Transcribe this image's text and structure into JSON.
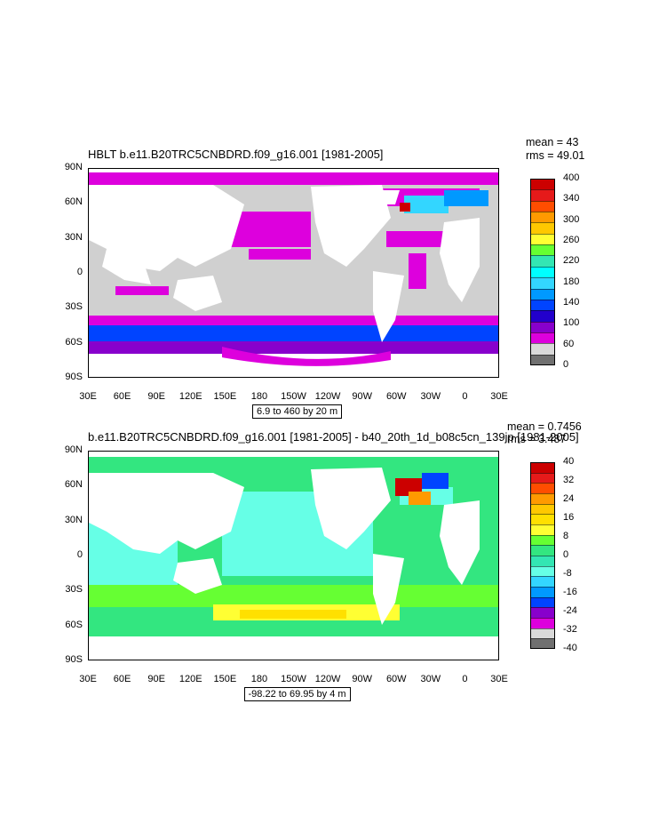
{
  "panels": [
    {
      "title": "HBLT b.e11.B20TRC5CNBDRD.f09_g16.001 [1981-2005]",
      "mean": "mean = 43",
      "rms": "rms = 49.01",
      "range_text": "6.9 to 460 by 20 m",
      "colorbar": {
        "labels": [
          "400",
          "340",
          "300",
          "260",
          "220",
          "180",
          "140",
          "100",
          "60",
          "0"
        ],
        "colors": [
          "#cc0000",
          "#e61a1a",
          "#ff4d00",
          "#ff9a00",
          "#ffc800",
          "#ffff33",
          "#66ff33",
          "#33e6b3",
          "#00ffff",
          "#33d6ff",
          "#0099ff",
          "#0044ff",
          "#2200cc",
          "#8800cc",
          "#dd00dd",
          "#d9d9d9",
          "#707070"
        ]
      },
      "chart_data": {
        "type": "heatmap",
        "title": "HBLT b.e11.B20TRC5CNBDRD.f09_g16.001 [1981-2005]",
        "units": "m",
        "range": [
          6.9,
          460
        ],
        "interval": 20,
        "mean": 43,
        "rms": 49.01
      }
    },
    {
      "title": "b.e11.B20TRC5CNBDRD.f09_g16.001 [1981-2005] - b40_20th_1d_b08c5cn_139jp [1981-2005]",
      "mean": "mean = 0.7456",
      "rms": "rms = 3.487",
      "range_text": "-98.22 to 69.95 by 4 m",
      "colorbar": {
        "labels": [
          "40",
          "32",
          "24",
          "16",
          "8",
          "0",
          "-8",
          "-16",
          "-24",
          "-32",
          "-40"
        ],
        "colors": [
          "#cc0000",
          "#e61a1a",
          "#ff4d00",
          "#ff9a00",
          "#ffc800",
          "#ffe000",
          "#ffff33",
          "#66ff33",
          "#33e680",
          "#33e6b3",
          "#66ffe6",
          "#33d6ff",
          "#0099ff",
          "#0044ff",
          "#8800cc",
          "#dd00dd",
          "#d9d9d9",
          "#707070"
        ]
      },
      "chart_data": {
        "type": "heatmap",
        "title": "b.e11.B20TRC5CNBDRD.f09_g16.001 [1981-2005] - b40_20th_1d_b08c5cn_139jp [1981-2005]",
        "units": "m",
        "range": [
          -98.22,
          69.95
        ],
        "interval": 4,
        "mean": 0.7456,
        "rms": 3.487
      }
    }
  ],
  "axes": {
    "lat_labels": [
      "90N",
      "60N",
      "30N",
      "0",
      "30S",
      "60S",
      "90S"
    ],
    "lon_labels": [
      "30E",
      "60E",
      "90E",
      "120E",
      "150E",
      "180",
      "150W",
      "120W",
      "90W",
      "60W",
      "30W",
      "0",
      "30E"
    ]
  }
}
